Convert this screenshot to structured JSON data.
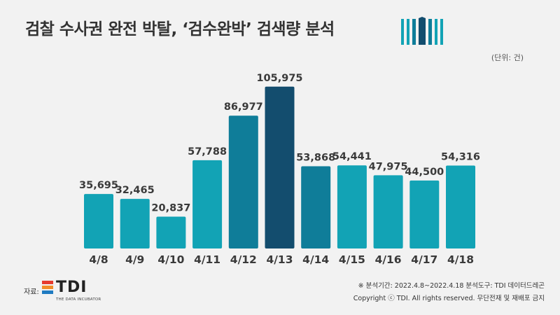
{
  "header": {
    "title": "검찰 수사권 완전 박탈, ‘검수완박’ 검색량 분석",
    "unit": "(단위: 건)"
  },
  "chart_data": {
    "type": "bar",
    "title": "검찰 수사권 완전 박탈, ‘검수완박’ 검색량 분석",
    "categories": [
      "4/8",
      "4/9",
      "4/10",
      "4/11",
      "4/12",
      "4/13",
      "4/14",
      "4/15",
      "4/16",
      "4/17",
      "4/18"
    ],
    "values": [
      35695,
      32465,
      20837,
      57788,
      86977,
      105975,
      53868,
      54441,
      47975,
      44500,
      54316
    ],
    "value_labels": [
      "35,695",
      "32,465",
      "20,837",
      "57,788",
      "86,977",
      "105,975",
      "53,868",
      "54,441",
      "47,975",
      "44,500",
      "54,316"
    ],
    "bar_colors": [
      "#12a3b5",
      "#12a3b5",
      "#12a3b5",
      "#12a3b5",
      "#0f7d99",
      "#134d6e",
      "#0f7d99",
      "#12a3b5",
      "#12a3b5",
      "#12a3b5",
      "#12a3b5"
    ],
    "xlabel": "",
    "ylabel": "",
    "ylim": [
      0,
      110000
    ],
    "grid": false,
    "legend": "none"
  },
  "footer": {
    "source_label": "자료:",
    "logo_text": "TDI",
    "logo_subtext": "THE DATA INCUBATOR",
    "period_note": "※ 분석기간: 2022.4.8~2022.4.18  분석도구: TDI 데이터드레곤",
    "copyright": "Copyright ⓒ TDI. All rights reserved. 무단전재 및 재배포 금지"
  },
  "colors": {
    "background": "#f2f2f2",
    "bar_main": "#12a3b5",
    "bar_mid": "#0f7d99",
    "bar_peak": "#134d6e",
    "logo_red": "#e63a2e",
    "logo_orange": "#f28c28",
    "logo_blue": "#1f7bc1"
  },
  "icons": {
    "title_logo": "bar-columns-icon",
    "brand_logo": "tdi-logo-icon"
  }
}
